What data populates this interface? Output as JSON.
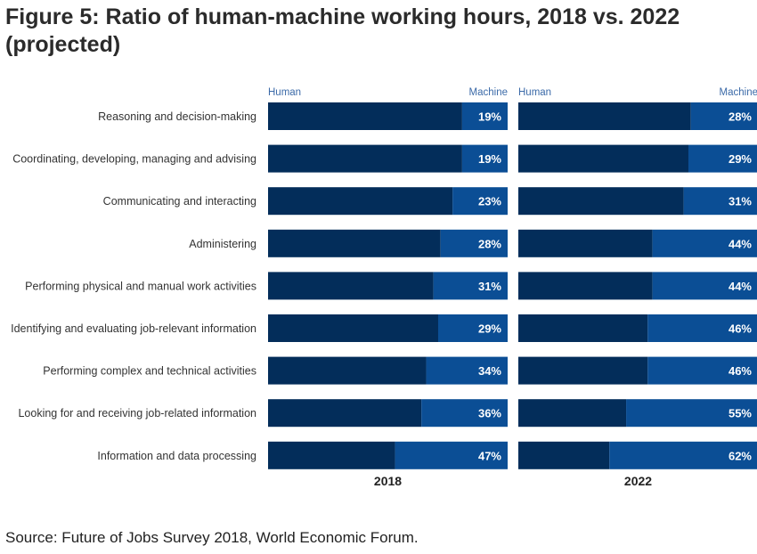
{
  "chart_data": {
    "type": "bar",
    "stacked": true,
    "orientation": "horizontal",
    "title": "Figure 5: Ratio of human-machine working hours, 2018 vs. 2022 (projected)",
    "source": "Source: Future of Jobs Survey 2018, World Economic Forum.",
    "categories": [
      "Reasoning and decision-making",
      "Coordinating, developing, managing and advising",
      "Communicating and interacting",
      "Administering",
      "Performing physical and manual work activities",
      "Identifying and evaluating job-relevant information",
      "Performing complex and technical activities",
      "Looking for and receiving job-related information",
      "Information and data processing"
    ],
    "panels": [
      {
        "label": "2018",
        "left_label": "Human",
        "right_label": "Machine",
        "machine_pct": [
          19,
          19,
          23,
          28,
          31,
          29,
          34,
          36,
          47
        ]
      },
      {
        "label": "2022",
        "left_label": "Human",
        "right_label": "Machine",
        "machine_pct": [
          28,
          29,
          31,
          44,
          44,
          46,
          46,
          55,
          62
        ]
      }
    ],
    "series": [
      {
        "name": "Human"
      },
      {
        "name": "Machine"
      }
    ],
    "xlim": [
      0,
      100
    ],
    "colors": {
      "human": "#032d5a",
      "machine": "#0b4e95",
      "header_label": "#3b6aa8",
      "value_label": "#ffffff"
    }
  }
}
